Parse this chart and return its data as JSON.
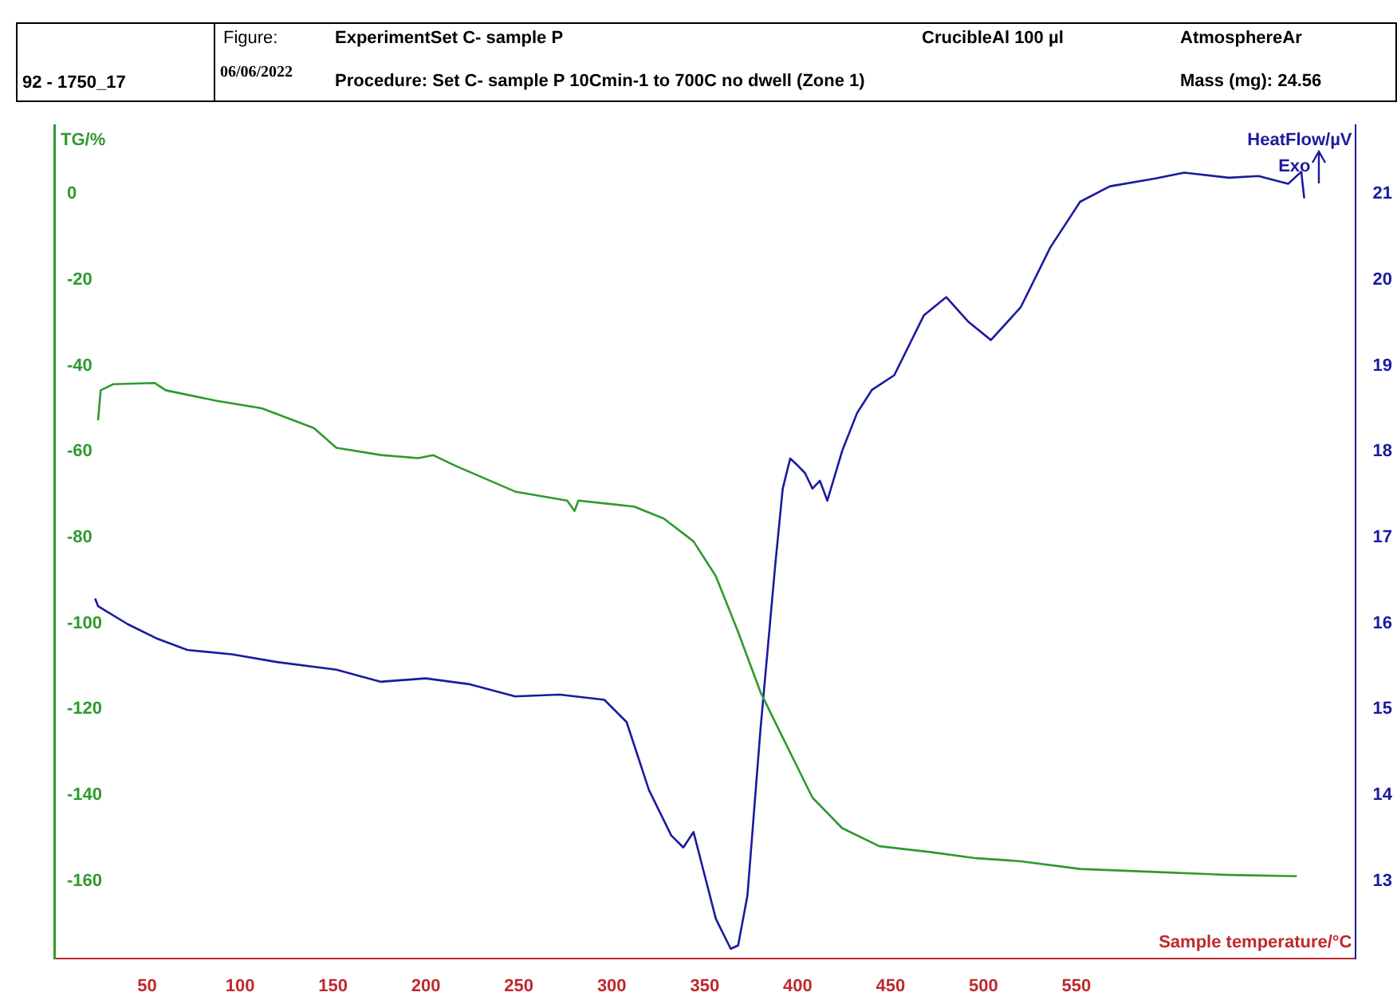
{
  "chart_data": {
    "type": "line",
    "xlabel": "Sample temperature/°C",
    "ylabel": "TG/%",
    "y2label": "HeatFlow/µV",
    "annotations": [
      "92 - 1750_17",
      "Figure:",
      "06/06/2022",
      "ExperimentSet C- sample P",
      "Procedure: Set C- sample P 10Cmin-1 to 700C no dwell  (Zone 1)",
      "CrucibleAl 100 µl",
      "AtmosphereAr",
      "Mass (mg): 24.56",
      "Exo"
    ],
    "xlim": [
      0,
      700
    ],
    "xticks": [
      50,
      100,
      150,
      200,
      250,
      300,
      350,
      400,
      450,
      500,
      550
    ],
    "ylim": [
      -178,
      16
    ],
    "yticks": [
      0,
      -20,
      -40,
      -60,
      -80,
      -100,
      -120,
      -140,
      -160
    ],
    "y2lim": [
      12.1,
      21.8
    ],
    "y2ticks": [
      13,
      14,
      15,
      16,
      17,
      18,
      19,
      20,
      21
    ],
    "grid": false,
    "legend": false,
    "marker": "none",
    "line_style": "solid",
    "series": [
      {
        "color": "#2e9a2e",
        "axis": "y",
        "x": [
          23.6,
          25,
          31.6,
          54,
          60,
          87.7,
          111.7,
          139.7,
          151.8,
          175.8,
          195.8,
          203.8,
          215.9,
          248,
          276,
          280,
          282,
          312,
          328,
          344,
          356,
          368,
          380,
          392,
          408,
          424,
          444,
          472,
          496,
          520,
          552,
          592,
          632.5,
          668.6
        ],
        "values": [
          -52.7,
          -45.7,
          -44.3,
          -44,
          -45.7,
          -48.2,
          -49.9,
          -54.5,
          -59.1,
          -60.8,
          -61.5,
          -60.8,
          -63.3,
          -69.3,
          -71.4,
          -73.8,
          -71.4,
          -72.8,
          -75.6,
          -80.9,
          -89,
          -102,
          -116,
          -126.6,
          -140.6,
          -147.7,
          -151.9,
          -153.3,
          -154.7,
          -155.4,
          -157.2,
          -157.9,
          -158.6,
          -158.9
        ]
      },
      {
        "color": "#1a1aa0",
        "axis": "y2",
        "x": [
          22,
          23.6,
          39.6,
          55.6,
          71.6,
          95.7,
          119.7,
          151.8,
          175.8,
          199.8,
          223.9,
          248,
          272,
          296,
          308,
          320,
          332,
          338.5,
          344,
          349.7,
          356,
          364,
          368,
          373,
          380,
          388,
          392,
          396,
          400,
          404,
          408,
          412,
          416,
          424,
          432,
          440,
          452,
          468,
          480,
          492,
          504,
          520,
          536,
          552,
          568,
          592,
          608,
          632,
          648,
          664,
          671,
          672.6
        ],
        "values": [
          16.29,
          16.2,
          15.99,
          15.82,
          15.69,
          15.64,
          15.55,
          15.46,
          15.32,
          15.36,
          15.29,
          15.15,
          15.17,
          15.11,
          14.85,
          14.06,
          13.53,
          13.39,
          13.57,
          13.09,
          12.56,
          12.21,
          12.25,
          12.83,
          14.76,
          16.69,
          17.57,
          17.92,
          17.84,
          17.75,
          17.57,
          17.66,
          17.43,
          18.01,
          18.45,
          18.72,
          18.89,
          19.59,
          19.8,
          19.51,
          19.3,
          19.68,
          20.38,
          20.91,
          21.09,
          21.18,
          21.25,
          21.19,
          21.21,
          21.12,
          21.26,
          20.95
        ]
      }
    ]
  }
}
